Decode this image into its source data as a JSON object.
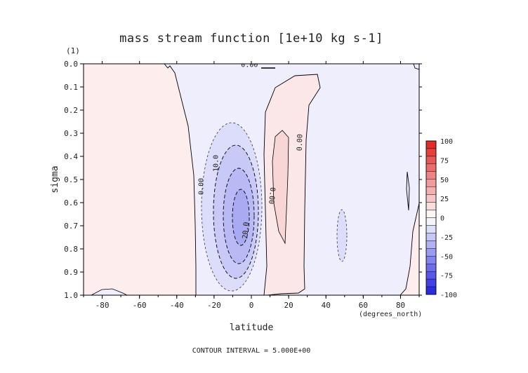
{
  "chart_data": {
    "type": "heatmap",
    "title": "mass stream function [1e+10 kg s-1]",
    "xlabel": "latitude",
    "x_unit_label": "(degrees_north)",
    "ylabel": "sigma",
    "y_unit_label": "(1)",
    "xlim": [
      -90,
      90
    ],
    "ylim": [
      1.0,
      0.0
    ],
    "x_ticks": [
      -80,
      -60,
      -40,
      -20,
      0,
      20,
      40,
      60,
      80
    ],
    "y_ticks": [
      0.0,
      0.1,
      0.2,
      0.3,
      0.4,
      0.5,
      0.6,
      0.7,
      0.8,
      0.9,
      1.0
    ],
    "colorbar": {
      "ticks": [
        100,
        75,
        50,
        25,
        0,
        -25,
        -50,
        -75,
        -100
      ],
      "levels": [
        100,
        90,
        80,
        70,
        60,
        50,
        40,
        30,
        20,
        10,
        0,
        -10,
        -20,
        -30,
        -40,
        -50,
        -60,
        -70,
        -80,
        -90,
        -100
      ],
      "positive_color": "#e02020",
      "negative_color": "#2020e0",
      "zero_color": "#ffffff"
    },
    "contour_labels": [
      {
        "text": "0.00",
        "lat": -27,
        "sigma": 0.53,
        "rotate": -90
      },
      {
        "text": "0.00",
        "lat": -1,
        "sigma": 0.005,
        "rotate": 0
      },
      {
        "text": "10.0",
        "lat": -19,
        "sigma": 0.43,
        "rotate": -90
      },
      {
        "text": "20.0",
        "lat": -3,
        "sigma": 0.72,
        "rotate": -85
      },
      {
        "text": "0.00",
        "lat": 11,
        "sigma": 0.57,
        "rotate": 95
      },
      {
        "text": "0.00",
        "lat": 26,
        "sigma": 0.34,
        "rotate": -88
      }
    ],
    "footer": "CONTOUR INTERVAL = 5.000E+00"
  }
}
